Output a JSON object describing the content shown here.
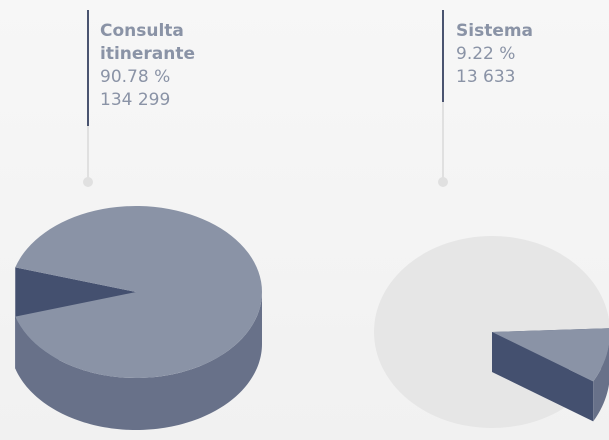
{
  "chart_data": {
    "type": "pie",
    "categories": [
      "Consulta itinerante",
      "Sistema"
    ],
    "values": [
      90.78,
      9.22
    ],
    "value_labels": [
      "90.78 %",
      "9.22 %"
    ],
    "counts": [
      134299,
      13633
    ],
    "count_labels": [
      "134 299",
      "13 633"
    ],
    "color": "#8a93a6"
  }
}
